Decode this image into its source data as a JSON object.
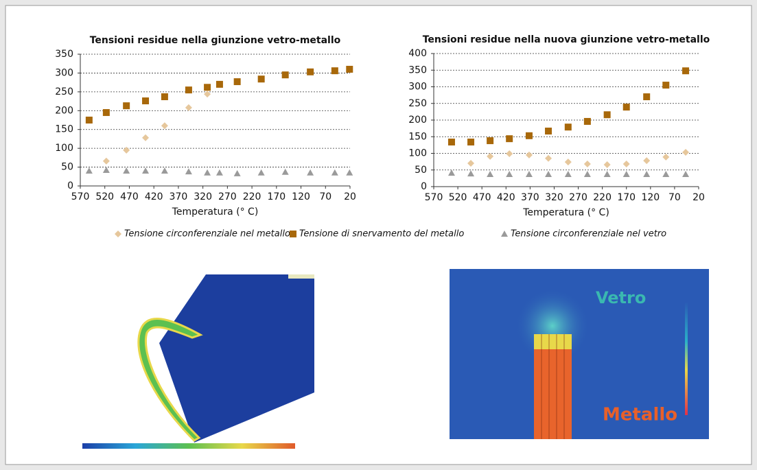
{
  "chart_data": [
    {
      "type": "scatter",
      "title": "Tensioni residue nella giunzione vetro-metallo",
      "x_label": "Temperatura (° C)",
      "xlim": [
        570,
        20
      ],
      "xticks": [
        570,
        520,
        470,
        420,
        370,
        320,
        270,
        220,
        170,
        120,
        70,
        20
      ],
      "ylim": [
        0,
        350
      ],
      "yticks": [
        0,
        50,
        100,
        150,
        200,
        250,
        300,
        350
      ],
      "grid": true,
      "series": [
        {
          "x": [
            517,
            476,
            437,
            398,
            349,
            311
          ],
          "values": [
            66,
            95,
            128,
            160,
            208,
            244
          ]
        },
        {
          "x": [
            552,
            517,
            476,
            437,
            398,
            349,
            311,
            286,
            250,
            201,
            152,
            101,
            51,
            21
          ],
          "values": [
            175,
            195,
            213,
            226,
            237,
            255,
            262,
            270,
            277,
            284,
            295,
            303,
            306,
            310
          ]
        },
        {
          "x": [
            552,
            517,
            476,
            437,
            398,
            349,
            311,
            286,
            250,
            201,
            152,
            101,
            51,
            21
          ],
          "values": [
            40,
            42,
            40,
            40,
            40,
            38,
            35,
            35,
            33,
            35,
            37,
            35,
            35,
            35
          ]
        }
      ]
    },
    {
      "type": "scatter",
      "title": "Tensioni residue nella nuova giunzione vetro-metallo",
      "x_label": "Temperatura (° C)",
      "xlim": [
        570,
        20
      ],
      "xticks": [
        570,
        520,
        470,
        420,
        370,
        320,
        270,
        220,
        170,
        120,
        70,
        20
      ],
      "ylim": [
        0,
        400
      ],
      "yticks": [
        0,
        50,
        100,
        150,
        200,
        250,
        300,
        350,
        400
      ],
      "grid": true,
      "series": [
        {
          "x": [
            493,
            453,
            413,
            372,
            332,
            291,
            251,
            210,
            170,
            128,
            88,
            47
          ],
          "values": [
            70,
            91,
            99,
            95,
            85,
            74,
            68,
            66,
            68,
            78,
            89,
            103
          ]
        },
        {
          "x": [
            533,
            493,
            453,
            413,
            372,
            332,
            291,
            251,
            210,
            170,
            128,
            88,
            47
          ],
          "values": [
            134,
            134,
            138,
            144,
            153,
            167,
            179,
            196,
            216,
            239,
            270,
            305,
            348
          ]
        },
        {
          "x": [
            533,
            493,
            453,
            413,
            372,
            332,
            291,
            251,
            210,
            170,
            128,
            88,
            47
          ],
          "values": [
            41,
            39,
            37,
            37,
            37,
            37,
            37,
            37,
            37,
            37,
            37,
            37,
            37
          ]
        }
      ]
    }
  ],
  "legend": [
    {
      "name": "Tensione circonferenziale nel metallo",
      "marker": "diamond",
      "color": "#e6c79c"
    },
    {
      "name": "Tensione di snervamento del metallo",
      "marker": "square",
      "color": "#a8680a"
    },
    {
      "name": "Tensione circonferenziale nel vetro",
      "marker": "triangle",
      "color": "#9a9a9a"
    }
  ],
  "images": {
    "right": {
      "labels": [
        "Vetro",
        "Metallo"
      ]
    }
  }
}
